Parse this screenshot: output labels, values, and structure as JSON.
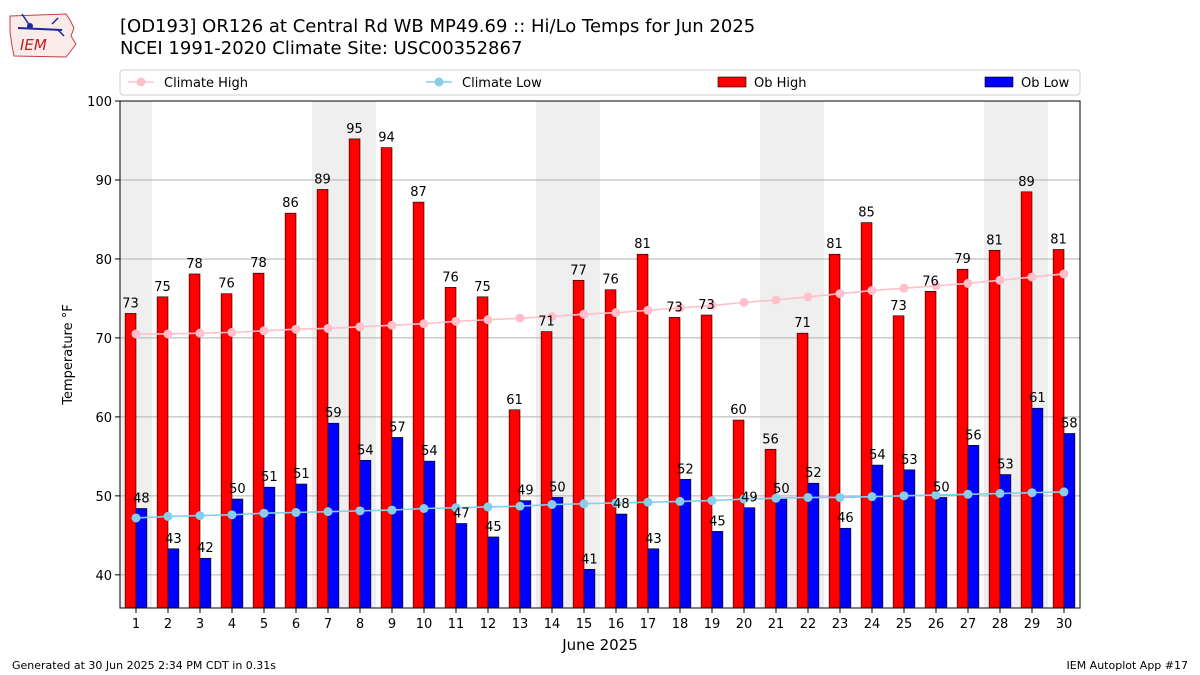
{
  "header": {
    "title_line1": "[OD193] OR126 at Central Rd WB MP49.69  :: Hi/Lo Temps for Jun 2025",
    "title_line2": "NCEI 1991-2020 Climate Site: USC00352867",
    "logo_text": "IEM"
  },
  "footer": {
    "generated": "Generated at 30 Jun 2025 2:34 PM CDT in 0.31s",
    "app": "IEM Autoplot App #17"
  },
  "colors": {
    "ob_high": "#ff0000",
    "ob_low": "#0000ff",
    "climate_high": "#ffc0cb",
    "climate_low": "#87ceeb",
    "weekend_shade": "#efefef",
    "grid": "#b0b0b0"
  },
  "chart_data": {
    "type": "bar",
    "xlabel": "June 2025",
    "ylabel": "Temperature °F",
    "ylim": [
      35.8,
      100
    ],
    "yticks": [
      40,
      50,
      60,
      70,
      80,
      90,
      100
    ],
    "grid": "horizontal",
    "legend_position": "top",
    "categories": [
      "1",
      "2",
      "3",
      "4",
      "5",
      "6",
      "7",
      "8",
      "9",
      "10",
      "11",
      "12",
      "13",
      "14",
      "15",
      "16",
      "17",
      "18",
      "19",
      "20",
      "21",
      "22",
      "23",
      "24",
      "25",
      "26",
      "27",
      "28",
      "29",
      "30"
    ],
    "shaded_days": [
      1,
      7,
      8,
      14,
      15,
      21,
      22,
      28,
      29
    ],
    "series": [
      {
        "name": "Ob High",
        "kind": "bar",
        "values": [
          73,
          75,
          78,
          76,
          78,
          86,
          89,
          95,
          94,
          87,
          76,
          75,
          61,
          71,
          77,
          76,
          81,
          73,
          73,
          60,
          56,
          71,
          81,
          85,
          73,
          76,
          79,
          81,
          89,
          81
        ],
        "heights": [
          73.1,
          75.2,
          78.1,
          75.6,
          78.2,
          85.8,
          88.8,
          95.2,
          94.1,
          87.2,
          76.4,
          75.2,
          60.9,
          70.8,
          77.3,
          76.1,
          80.6,
          72.6,
          72.9,
          59.6,
          55.9,
          70.6,
          80.6,
          84.6,
          72.8,
          75.9,
          78.7,
          81.1,
          88.5,
          81.2
        ]
      },
      {
        "name": "Ob Low",
        "kind": "bar",
        "values": [
          48,
          43,
          42,
          50,
          51,
          51,
          59,
          54,
          57,
          54,
          47,
          45,
          49,
          50,
          41,
          48,
          43,
          52,
          45,
          49,
          50,
          52,
          46,
          54,
          53,
          50,
          56,
          53,
          61,
          58
        ],
        "heights": [
          48.4,
          43.3,
          42.1,
          49.6,
          51.1,
          51.5,
          59.2,
          54.5,
          57.4,
          54.4,
          46.5,
          44.8,
          49.4,
          49.8,
          40.7,
          47.7,
          43.3,
          52.1,
          45.5,
          48.5,
          49.6,
          51.6,
          45.9,
          53.9,
          53.3,
          49.8,
          56.4,
          52.7,
          61.1,
          57.9
        ]
      },
      {
        "name": "Climate High",
        "kind": "line",
        "values": [
          70.5,
          70.5,
          70.6,
          70.7,
          70.9,
          71.1,
          71.2,
          71.4,
          71.6,
          71.8,
          72.1,
          72.3,
          72.5,
          72.7,
          73.0,
          73.2,
          73.5,
          73.8,
          74.1,
          74.5,
          74.8,
          75.2,
          75.6,
          76.0,
          76.3,
          76.6,
          76.9,
          77.3,
          77.7,
          78.1
        ]
      },
      {
        "name": "Climate Low",
        "kind": "line",
        "values": [
          47.2,
          47.4,
          47.5,
          47.6,
          47.8,
          47.9,
          48.0,
          48.1,
          48.2,
          48.4,
          48.5,
          48.6,
          48.7,
          48.9,
          49.0,
          49.1,
          49.2,
          49.3,
          49.4,
          49.6,
          49.7,
          49.8,
          49.8,
          49.9,
          50.0,
          50.1,
          50.2,
          50.3,
          50.4,
          50.5
        ]
      }
    ]
  }
}
